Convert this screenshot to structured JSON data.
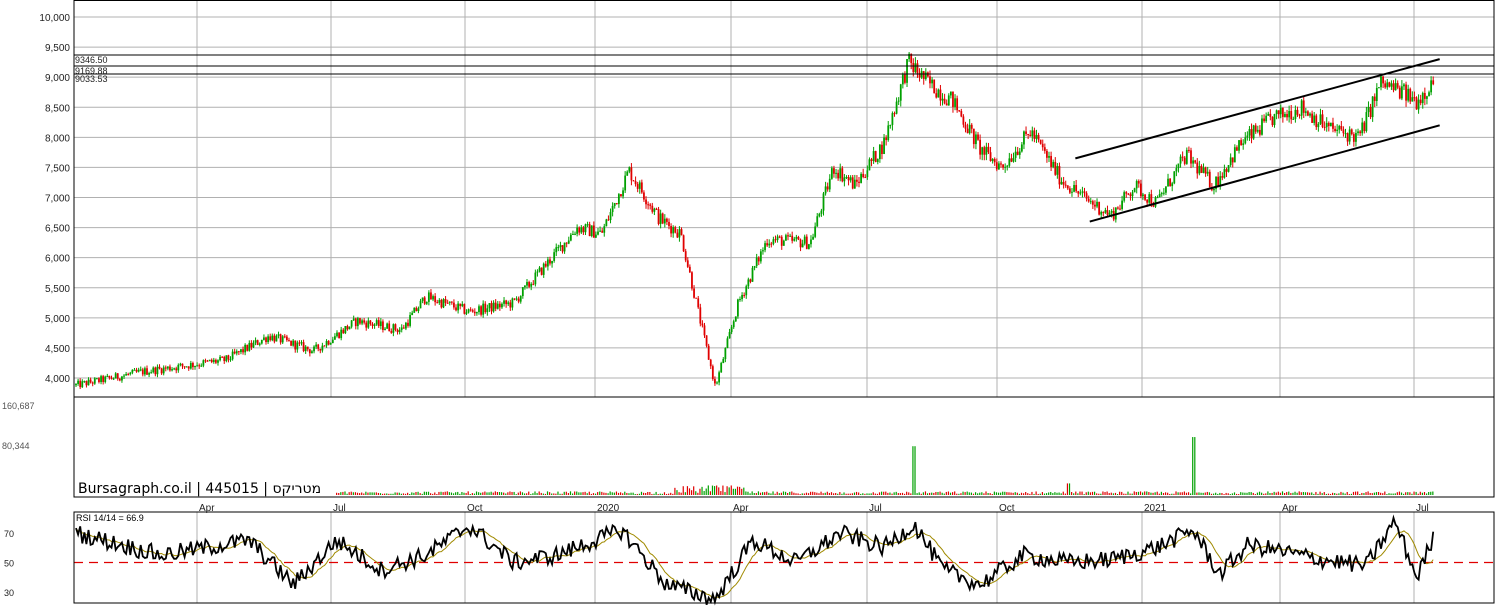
{
  "watermark": "Bursagraph.co.il | 445015 | מטריקס",
  "rsi_label": "RSI 14/14 = 66.9",
  "price_axis": [
    "10,000",
    "9,500",
    "9,000",
    "8,500",
    "8,000",
    "7,500",
    "7,000",
    "6,500",
    "6,000",
    "5,500",
    "5,000",
    "4,500",
    "4,000"
  ],
  "volume_axis": [
    "160,687",
    "80,344"
  ],
  "rsi_axis": [
    "70",
    "50",
    "30"
  ],
  "month_labels": [
    "Apr",
    "Jul",
    "Oct",
    "2020",
    "Apr",
    "Jul",
    "Oct",
    "2021",
    "Apr",
    "Jul"
  ],
  "resistance_labels": [
    "9346.50",
    "9169.88",
    "9033.53"
  ],
  "colors": {
    "up": "#00a000",
    "down": "#e00000",
    "rsi": "#000000",
    "rsi_avg": "#a08a00",
    "rsi_mid": "#e00000",
    "grid": "#b0b0b0",
    "channel": "#000000"
  },
  "chart_data": {
    "type": "candlestick",
    "price_ylim": [
      3800,
      10000
    ],
    "volume_ylim": [
      0,
      160687
    ],
    "rsi_ylim": [
      20,
      85
    ],
    "x_range": [
      "2019-01",
      "2021-08"
    ],
    "resistance_levels": [
      9346.5,
      9169.88,
      9033.53
    ],
    "price_path": [
      [
        "2019-01-01",
        3880
      ],
      [
        "2019-02-15",
        4100
      ],
      [
        "2019-04-15",
        4300
      ],
      [
        "2019-05-15",
        4700
      ],
      [
        "2019-06-15",
        4450
      ],
      [
        "2019-07-15",
        4950
      ],
      [
        "2019-08-15",
        4800
      ],
      [
        "2019-09-01",
        5350
      ],
      [
        "2019-10-01",
        5100
      ],
      [
        "2019-11-01",
        5250
      ],
      [
        "2019-12-01",
        6100
      ],
      [
        "2019-12-15",
        6500
      ],
      [
        "2020-01-01",
        6400
      ],
      [
        "2020-01-20",
        7450
      ],
      [
        "2020-02-10",
        6650
      ],
      [
        "2020-02-25",
        6400
      ],
      [
        "2020-03-10",
        4900
      ],
      [
        "2020-03-20",
        3850
      ],
      [
        "2020-04-05",
        5250
      ],
      [
        "2020-04-25",
        6300
      ],
      [
        "2020-05-25",
        6250
      ],
      [
        "2020-06-10",
        7500
      ],
      [
        "2020-06-25",
        7200
      ],
      [
        "2020-07-15",
        7900
      ],
      [
        "2020-08-01",
        9250
      ],
      [
        "2020-08-15",
        8900
      ],
      [
        "2020-09-01",
        8600
      ],
      [
        "2020-09-20",
        7800
      ],
      [
        "2020-10-05",
        7500
      ],
      [
        "2020-10-25",
        8100
      ],
      [
        "2020-11-15",
        7300
      ],
      [
        "2020-12-01",
        7000
      ],
      [
        "2020-12-20",
        6700
      ],
      [
        "2021-01-05",
        7200
      ],
      [
        "2021-01-20",
        6900
      ],
      [
        "2021-02-10",
        7700
      ],
      [
        "2021-03-01",
        7200
      ],
      [
        "2021-03-20",
        7900
      ],
      [
        "2021-04-10",
        8300
      ],
      [
        "2021-05-01",
        8500
      ],
      [
        "2021-05-20",
        8150
      ],
      [
        "2021-06-10",
        8000
      ],
      [
        "2021-06-25",
        8900
      ],
      [
        "2021-07-10",
        8750
      ],
      [
        "2021-07-20",
        8600
      ],
      [
        "2021-08-01",
        8950
      ]
    ],
    "volume_spikes": [
      [
        "2020-03-15",
        16000
      ],
      [
        "2020-08-05",
        80000
      ],
      [
        "2020-11-20",
        19000
      ],
      [
        "2021-02-15",
        95000
      ]
    ],
    "rsi_path": [
      [
        "2019-01-01",
        70
      ],
      [
        "2019-03-01",
        55
      ],
      [
        "2019-05-01",
        65
      ],
      [
        "2019-06-01",
        35
      ],
      [
        "2019-07-01",
        65
      ],
      [
        "2019-08-01",
        45
      ],
      [
        "2019-09-01",
        55
      ],
      [
        "2019-10-01",
        75
      ],
      [
        "2019-11-01",
        50
      ],
      [
        "2019-12-01",
        55
      ],
      [
        "2020-01-15",
        72
      ],
      [
        "2020-02-15",
        35
      ],
      [
        "2020-03-20",
        25
      ],
      [
        "2020-04-15",
        65
      ],
      [
        "2020-05-15",
        50
      ],
      [
        "2020-06-15",
        70
      ],
      [
        "2020-07-15",
        60
      ],
      [
        "2020-08-05",
        76
      ],
      [
        "2020-08-25",
        45
      ],
      [
        "2020-09-20",
        35
      ],
      [
        "2020-10-20",
        55
      ],
      [
        "2020-11-20",
        50
      ],
      [
        "2020-12-20",
        52
      ],
      [
        "2021-01-20",
        60
      ],
      [
        "2021-02-15",
        72
      ],
      [
        "2021-03-05",
        42
      ],
      [
        "2021-03-25",
        62
      ],
      [
        "2021-04-15",
        58
      ],
      [
        "2021-05-15",
        52
      ],
      [
        "2021-06-15",
        48
      ],
      [
        "2021-07-05",
        78
      ],
      [
        "2021-07-20",
        40
      ],
      [
        "2021-08-01",
        67
      ]
    ],
    "rsi_midline": 50,
    "rsi_last": 66.9,
    "channel_upper": [
      [
        "2020-11-25",
        7650
      ],
      [
        "2021-08-05",
        9300
      ]
    ],
    "channel_lower": [
      [
        "2020-12-05",
        6600
      ],
      [
        "2021-08-05",
        8200
      ]
    ]
  }
}
